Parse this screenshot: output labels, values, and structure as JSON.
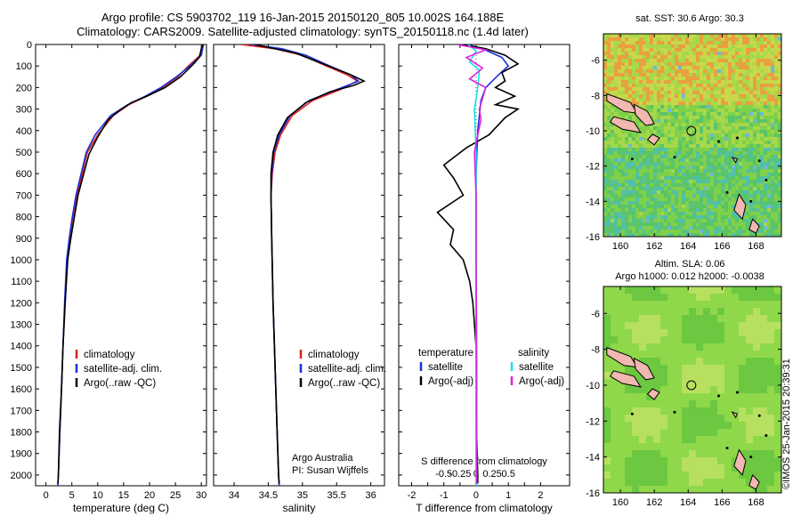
{
  "title_line1": "Argo profile: CS 5903702_119 16-Jan-2015 20150120_805 10.002S 164.188E",
  "title_line2": "Climatology: CARS2009. Satellite-adjusted climatology: synTS_20150118.nc (1.4d later)",
  "stamp": "©IMOS 25-Jan-2015 20:39:31",
  "colors": {
    "climatology": "#e02020",
    "satellite": "#1a2fd8",
    "argo": "#000000",
    "sat_salinity": "#18e0e8",
    "argo_adj_salinity": "#e020e0"
  },
  "map_top_title": "sat. SST: 30.6 Argo: 30.3",
  "map_bottom_title1": "Altim. SLA: 0.06",
  "map_bottom_title2": "Argo h1000: 0.012 h2000: -0.0038",
  "legend": {
    "climatology": "climatology",
    "satellite": "satellite-adj. clim.",
    "argo": "Argo(..raw -QC)",
    "diff_temperature": "temperature",
    "diff_salinity": "salinity",
    "diff_satellite": "satellite",
    "diff_argo": "Argo(-adj)"
  },
  "annotation": {
    "line1": "Argo Australia",
    "line2": "PI: Susan Wijffels"
  },
  "chart_data": [
    {
      "type": "line",
      "xlabel": "temperature (deg C)",
      "ylabel": "",
      "xlim": [
        -2,
        31
      ],
      "ylim": [
        2050,
        0
      ],
      "xticks": [
        0,
        5,
        10,
        15,
        20,
        25,
        30
      ],
      "yticks": [
        0,
        100,
        200,
        300,
        400,
        500,
        600,
        700,
        800,
        900,
        1000,
        1100,
        1200,
        1300,
        1400,
        1500,
        1600,
        1700,
        1800,
        1900,
        2000
      ],
      "series": [
        {
          "name": "climatology",
          "color": "#e02020",
          "points": [
            [
              30.2,
              0
            ],
            [
              29.8,
              50
            ],
            [
              27.5,
              100
            ],
            [
              25.5,
              150
            ],
            [
              22.5,
              200
            ],
            [
              19.5,
              240
            ],
            [
              16,
              280
            ],
            [
              13,
              330
            ],
            [
              10,
              420
            ],
            [
              8,
              500
            ],
            [
              7,
              600
            ],
            [
              6,
              700
            ],
            [
              5.2,
              800
            ],
            [
              4.6,
              900
            ],
            [
              4.1,
              1000
            ],
            [
              3.7,
              1200
            ],
            [
              3.3,
              1400
            ],
            [
              3,
              1600
            ],
            [
              2.7,
              1800
            ],
            [
              2.4,
              2000
            ],
            [
              2.3,
              2050
            ]
          ]
        },
        {
          "name": "satellite-adj. clim.",
          "color": "#1a2fd8",
          "points": [
            [
              30.4,
              0
            ],
            [
              30,
              50
            ],
            [
              27.8,
              100
            ],
            [
              25.2,
              150
            ],
            [
              22.2,
              200
            ],
            [
              19.2,
              240
            ],
            [
              15.8,
              280
            ],
            [
              12.5,
              330
            ],
            [
              9.5,
              420
            ],
            [
              7.8,
              500
            ],
            [
              6.8,
              600
            ],
            [
              5.8,
              700
            ],
            [
              5.1,
              800
            ],
            [
              4.5,
              900
            ],
            [
              4,
              1000
            ],
            [
              3.6,
              1200
            ],
            [
              3.3,
              1400
            ],
            [
              3,
              1600
            ],
            [
              2.7,
              1800
            ],
            [
              2.4,
              2000
            ],
            [
              2.3,
              2050
            ]
          ]
        },
        {
          "name": "Argo(..raw -QC)",
          "color": "#000000",
          "points": [
            [
              30.3,
              0
            ],
            [
              30,
              20
            ],
            [
              29.6,
              60
            ],
            [
              28.5,
              90
            ],
            [
              26,
              150
            ],
            [
              23,
              200
            ],
            [
              19.5,
              240
            ],
            [
              16.5,
              270
            ],
            [
              14,
              310
            ],
            [
              12,
              350
            ],
            [
              10,
              430
            ],
            [
              8.3,
              510
            ],
            [
              7.3,
              600
            ],
            [
              6.2,
              700
            ],
            [
              5.5,
              800
            ],
            [
              4.8,
              900
            ],
            [
              4.2,
              1000
            ],
            [
              3.7,
              1200
            ],
            [
              3.3,
              1400
            ],
            [
              3,
              1600
            ],
            [
              2.6,
              1800
            ],
            [
              2.4,
              2000
            ],
            [
              2.3,
              2040
            ]
          ]
        }
      ]
    },
    {
      "type": "line",
      "xlabel": "salinity",
      "ylabel": "",
      "xlim": [
        33.7,
        36.2
      ],
      "ylim": [
        2050,
        0
      ],
      "xticks": [
        34,
        34.5,
        35,
        35.5,
        36
      ],
      "series": [
        {
          "name": "climatology",
          "color": "#e02020",
          "points": [
            [
              34.1,
              0
            ],
            [
              34.6,
              20
            ],
            [
              35,
              50
            ],
            [
              35.35,
              100
            ],
            [
              35.65,
              140
            ],
            [
              35.8,
              170
            ],
            [
              35.55,
              210
            ],
            [
              35.15,
              260
            ],
            [
              34.85,
              330
            ],
            [
              34.68,
              420
            ],
            [
              34.6,
              500
            ],
            [
              34.56,
              600
            ],
            [
              34.54,
              700
            ],
            [
              34.55,
              900
            ],
            [
              34.57,
              1200
            ],
            [
              34.6,
              1500
            ],
            [
              34.63,
              1800
            ],
            [
              34.65,
              2000
            ],
            [
              34.66,
              2050
            ]
          ]
        },
        {
          "name": "satellite-adj. clim.",
          "color": "#1a2fd8",
          "points": [
            [
              34.25,
              0
            ],
            [
              34.7,
              20
            ],
            [
              35.05,
              50
            ],
            [
              35.4,
              100
            ],
            [
              35.7,
              140
            ],
            [
              35.82,
              170
            ],
            [
              35.5,
              210
            ],
            [
              35.1,
              260
            ],
            [
              34.82,
              330
            ],
            [
              34.66,
              420
            ],
            [
              34.58,
              500
            ],
            [
              34.55,
              600
            ],
            [
              34.54,
              700
            ],
            [
              34.55,
              900
            ],
            [
              34.57,
              1200
            ],
            [
              34.6,
              1500
            ],
            [
              34.63,
              1800
            ],
            [
              34.65,
              2000
            ],
            [
              34.66,
              2050
            ]
          ]
        },
        {
          "name": "Argo(..raw -QC)",
          "color": "#000000",
          "points": [
            [
              34.3,
              0
            ],
            [
              34.45,
              10
            ],
            [
              34.9,
              40
            ],
            [
              35.3,
              90
            ],
            [
              35.7,
              140
            ],
            [
              35.9,
              170
            ],
            [
              35.75,
              190
            ],
            [
              35.4,
              220
            ],
            [
              35.05,
              270
            ],
            [
              34.78,
              340
            ],
            [
              34.64,
              420
            ],
            [
              34.57,
              500
            ],
            [
              34.54,
              600
            ],
            [
              34.54,
              700
            ],
            [
              34.55,
              900
            ],
            [
              34.57,
              1200
            ],
            [
              34.6,
              1500
            ],
            [
              34.63,
              1800
            ],
            [
              34.65,
              2000
            ],
            [
              34.66,
              2040
            ]
          ]
        }
      ]
    },
    {
      "type": "line",
      "xlabel": "T difference from climatology",
      "xlabel_top": "S difference from climatology",
      "ylabel": "",
      "xlim": [
        -2.4,
        2.9
      ],
      "ylim": [
        2050,
        0
      ],
      "xticks": [
        -2,
        -1.5,
        -1,
        -0.5,
        0,
        0.5,
        1,
        1.5,
        2
      ],
      "xticklabels": [
        "-2",
        "",
        "-1",
        "",
        "0",
        "",
        "1",
        "",
        "2"
      ],
      "xticks_top_labels": [
        "-0.5",
        "-0.25",
        "0",
        "0.25",
        "0.5"
      ],
      "series": [
        {
          "name": "satellite",
          "color": "#1a2fd8",
          "points": [
            [
              -0.3,
              0
            ],
            [
              0.2,
              20
            ],
            [
              0.8,
              60
            ],
            [
              1,
              100
            ],
            [
              0.7,
              140
            ],
            [
              0.3,
              200
            ],
            [
              0.15,
              260
            ],
            [
              0.05,
              400
            ],
            [
              0,
              600
            ],
            [
              0,
              1000
            ],
            [
              0,
              1500
            ],
            [
              0,
              2000
            ],
            [
              0,
              2050
            ]
          ]
        },
        {
          "name": "Argo(-adj)",
          "color": "#000000",
          "points": [
            [
              -0.4,
              0
            ],
            [
              0.3,
              20
            ],
            [
              0.9,
              50
            ],
            [
              1.3,
              90
            ],
            [
              0.8,
              130
            ],
            [
              0.9,
              170
            ],
            [
              0.6,
              200
            ],
            [
              1.2,
              240
            ],
            [
              0.6,
              280
            ],
            [
              1.3,
              300
            ],
            [
              0.9,
              340
            ],
            [
              0.4,
              420
            ],
            [
              -0.3,
              480
            ],
            [
              -1,
              560
            ],
            [
              -0.7,
              620
            ],
            [
              -0.4,
              700
            ],
            [
              -1.2,
              780
            ],
            [
              -0.7,
              860
            ],
            [
              -0.8,
              930
            ],
            [
              -0.4,
              1000
            ],
            [
              -0.2,
              1100
            ],
            [
              -0.1,
              1200
            ],
            [
              0,
              1400
            ],
            [
              0,
              1700
            ],
            [
              0.05,
              2000
            ],
            [
              0.05,
              2040
            ]
          ]
        },
        {
          "name": "salinity satellite",
          "color": "#18e0e8",
          "points": [
            [
              -0.25,
              0
            ],
            [
              0,
              30
            ],
            [
              -0.2,
              80
            ],
            [
              0.1,
              120
            ],
            [
              0.05,
              200
            ],
            [
              -0.05,
              300
            ],
            [
              0,
              500
            ],
            [
              0,
              800
            ],
            [
              0,
              1200
            ],
            [
              0,
              1600
            ],
            [
              0,
              2000
            ],
            [
              0,
              2050
            ]
          ]
        },
        {
          "name": "salinity Argo(-adj)",
          "color": "#e020e0",
          "points": [
            [
              -0.6,
              0
            ],
            [
              0.3,
              25
            ],
            [
              -0.3,
              60
            ],
            [
              0.2,
              110
            ],
            [
              -0.2,
              160
            ],
            [
              0.3,
              200
            ],
            [
              0.1,
              300
            ],
            [
              0.15,
              350
            ],
            [
              0.05,
              420
            ],
            [
              -0.05,
              500
            ],
            [
              0,
              700
            ],
            [
              0,
              1000
            ],
            [
              0.02,
              1500
            ],
            [
              0.02,
              2000
            ],
            [
              0.02,
              2040
            ]
          ]
        }
      ]
    },
    {
      "type": "heatmap",
      "title": "sat. SST: 30.6 Argo: 30.3",
      "xlim": [
        159,
        169.5
      ],
      "ylim": [
        -16,
        -4.5
      ],
      "xticks": [
        160,
        162,
        164,
        166,
        168
      ],
      "yticks": [
        -6,
        -8,
        -10,
        -12,
        -14,
        -16
      ],
      "marker": [
        164.188,
        -10.002
      ]
    },
    {
      "type": "heatmap",
      "title": "Altim. SLA: 0.06",
      "xlim": [
        159,
        169.5
      ],
      "ylim": [
        -16,
        -4.5
      ],
      "xticks": [
        160,
        162,
        164,
        166,
        168
      ],
      "yticks": [
        -6,
        -8,
        -10,
        -12,
        -14,
        -16
      ],
      "marker": [
        164.188,
        -10.002
      ]
    }
  ]
}
